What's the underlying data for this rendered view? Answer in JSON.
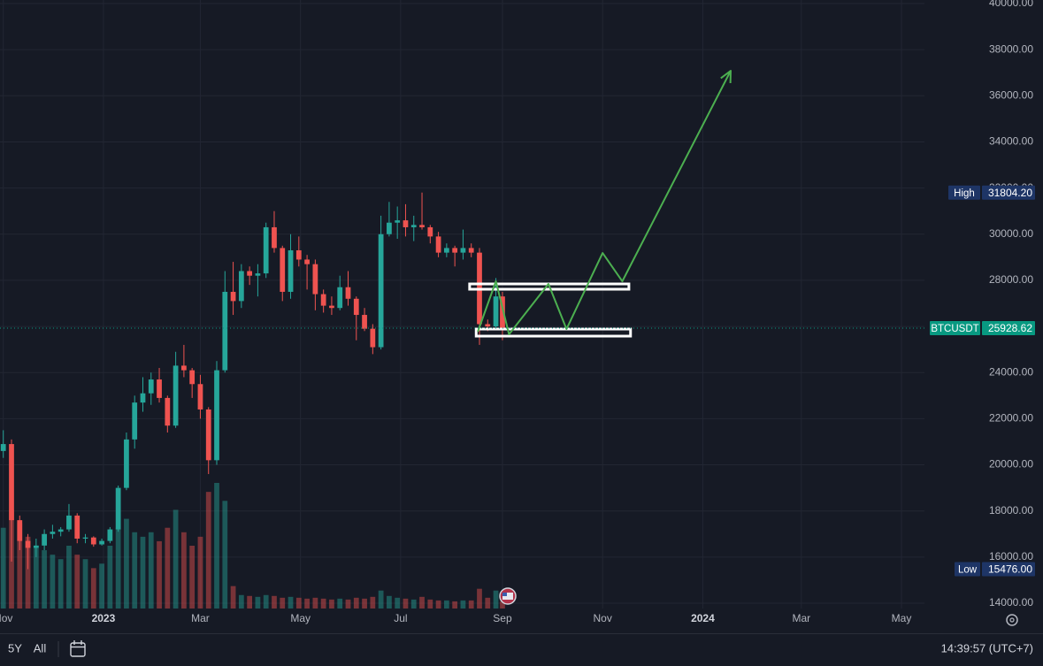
{
  "chart_data": {
    "type": "candlestick",
    "xlim": [
      -2,
      561
    ],
    "ylim": [
      14000,
      40000
    ],
    "xticks": [
      {
        "value": 0,
        "label": "Nov"
      },
      {
        "value": 61,
        "label": "2023"
      },
      {
        "value": 120,
        "label": "Mar"
      },
      {
        "value": 181,
        "label": "May"
      },
      {
        "value": 242,
        "label": "Jul"
      },
      {
        "value": 304,
        "label": "Sep"
      },
      {
        "value": 365,
        "label": "Nov"
      },
      {
        "value": 426,
        "label": "2024"
      },
      {
        "value": 486,
        "label": "Mar"
      },
      {
        "value": 547,
        "label": "May"
      }
    ],
    "yticks": [
      {
        "value": 14000,
        "label": "14000.00"
      },
      {
        "value": 16000,
        "label": "16000.00"
      },
      {
        "value": 18000,
        "label": "18000.00"
      },
      {
        "value": 20000,
        "label": "20000.00"
      },
      {
        "value": 22000,
        "label": "22000.00"
      },
      {
        "value": 24000,
        "label": "24000.00"
      },
      {
        "value": 26000,
        "label": "26000.00"
      },
      {
        "value": 28000,
        "label": "28000.00"
      },
      {
        "value": 30000,
        "label": "30000.00"
      },
      {
        "value": 32000,
        "label": "32000.00"
      },
      {
        "value": 34000,
        "label": "34000.00"
      },
      {
        "value": 36000,
        "label": "36000.00"
      },
      {
        "value": 38000,
        "label": "38000.00"
      },
      {
        "value": 40000,
        "label": "40000.00"
      }
    ],
    "grid": true,
    "up_color": "#26a69a",
    "down_color": "#ef5350",
    "series": [
      {
        "name": "BTCUSDT",
        "x": [
          0,
          5,
          10,
          15,
          20,
          25,
          30,
          35,
          40,
          45,
          50,
          55,
          60,
          65,
          70,
          75,
          80,
          85,
          90,
          95,
          100,
          105,
          110,
          115,
          120,
          125,
          130,
          135,
          140,
          145,
          150,
          155,
          160,
          165,
          170,
          175,
          180,
          185,
          190,
          195,
          200,
          205,
          210,
          215,
          220,
          225,
          230,
          235,
          240,
          245,
          250,
          255,
          260,
          265,
          270,
          275,
          280,
          285,
          290,
          295,
          300,
          304
        ],
        "open": [
          20600,
          20900,
          17600,
          16700,
          16400,
          16500,
          17000,
          17100,
          17200,
          17800,
          16800,
          16850,
          16550,
          16700,
          17200,
          19000,
          21100,
          22700,
          23100,
          23700,
          22900,
          21700,
          24300,
          24100,
          23500,
          22400,
          20200,
          24100,
          27500,
          27100,
          28400,
          28200,
          28300,
          30300,
          29400,
          27500,
          29300,
          28900,
          28700,
          27400,
          26900,
          26800,
          27700,
          27200,
          26500,
          25900,
          25100,
          30000,
          30500,
          30600,
          30300,
          30400,
          30300,
          29900,
          29200,
          29400,
          29200,
          29400,
          29200,
          26100,
          26000,
          27300
        ],
        "high": [
          21500,
          21100,
          17800,
          17000,
          16800,
          17200,
          17400,
          17300,
          18300,
          17900,
          17000,
          16900,
          16800,
          17300,
          19100,
          21400,
          23000,
          23800,
          24000,
          24200,
          23000,
          24900,
          25200,
          24200,
          23900,
          22500,
          24500,
          28400,
          28800,
          28700,
          28600,
          28700,
          30500,
          31000,
          29500,
          30000,
          29900,
          29100,
          28900,
          27600,
          27300,
          28200,
          28400,
          27300,
          26800,
          26100,
          30800,
          31400,
          31200,
          31300,
          30800,
          31804.2,
          30400,
          30100,
          29600,
          29500,
          30200,
          29600,
          29400,
          26300,
          28100,
          27500
        ],
        "low": [
          20300,
          15800,
          16300,
          15476,
          16000,
          16300,
          16800,
          16900,
          17100,
          16600,
          16600,
          16450,
          16500,
          16600,
          17100,
          18900,
          20700,
          22300,
          22600,
          22700,
          21400,
          21600,
          23800,
          22900,
          22000,
          19600,
          20000,
          24000,
          26500,
          26800,
          27800,
          27300,
          28100,
          29200,
          27100,
          27200,
          28600,
          27600,
          26700,
          26600,
          26500,
          26700,
          26900,
          25400,
          25800,
          24800,
          25000,
          29900,
          29800,
          29900,
          29700,
          30200,
          29600,
          29000,
          29000,
          28600,
          28900,
          29000,
          25200,
          25800,
          25900,
          25400
        ],
        "close": [
          20900,
          17600,
          16700,
          16400,
          16500,
          17000,
          17100,
          17200,
          17800,
          16800,
          16850,
          16550,
          16700,
          17200,
          19000,
          21100,
          22700,
          23100,
          23700,
          22900,
          21700,
          24300,
          24100,
          23500,
          22400,
          20200,
          24100,
          27500,
          27100,
          28400,
          28200,
          28300,
          30300,
          29400,
          27500,
          29300,
          28900,
          28700,
          27400,
          26900,
          26800,
          27700,
          27200,
          26500,
          25900,
          25100,
          30000,
          30500,
          30600,
          30300,
          30400,
          30300,
          29900,
          29200,
          29400,
          29200,
          29400,
          29200,
          26100,
          26000,
          27300,
          25928.62
        ],
        "volume": [
          90,
          110,
          95,
          80,
          70,
          65,
          60,
          55,
          70,
          60,
          55,
          45,
          50,
          70,
          90,
          100,
          85,
          80,
          85,
          75,
          90,
          110,
          85,
          70,
          80,
          130,
          140,
          120,
          25,
          15,
          14,
          13,
          15,
          14,
          12,
          13,
          12,
          11,
          12,
          11,
          10,
          11,
          10,
          12,
          11,
          13,
          20,
          14,
          12,
          11,
          10,
          13,
          10,
          9,
          9,
          8,
          9,
          9,
          22,
          12,
          20,
          8
        ]
      }
    ],
    "price_markers": [
      {
        "name": "High",
        "value": 31804.2,
        "label": "31804.20",
        "color": "#1e3566"
      },
      {
        "name": "BTCUSDT",
        "value": 25928.62,
        "color": "#089981"
      },
      {
        "name": "Low",
        "value": 15476,
        "label": "15476.00",
        "color": "#1e3566"
      }
    ],
    "annotations": {
      "forecast": {
        "color": "#4caf50",
        "x": [
          289,
          300,
          308,
          332,
          343,
          365,
          377,
          443
        ],
        "y": [
          25772,
          27958,
          25657,
          27843,
          25887,
          29185,
          27958,
          37085
        ]
      },
      "boxes": [
        {
          "color": "#ffffff",
          "x": [
            284,
            381
          ],
          "y": [
            27613,
            27843
          ]
        },
        {
          "color": "#ffffff",
          "x": [
            288,
            382
          ],
          "y": [
            25580,
            25887
          ]
        }
      ]
    }
  },
  "toolbar": {
    "ranges": [
      "5Y",
      "All"
    ],
    "clock": "14:39:57 (UTC+7)"
  }
}
